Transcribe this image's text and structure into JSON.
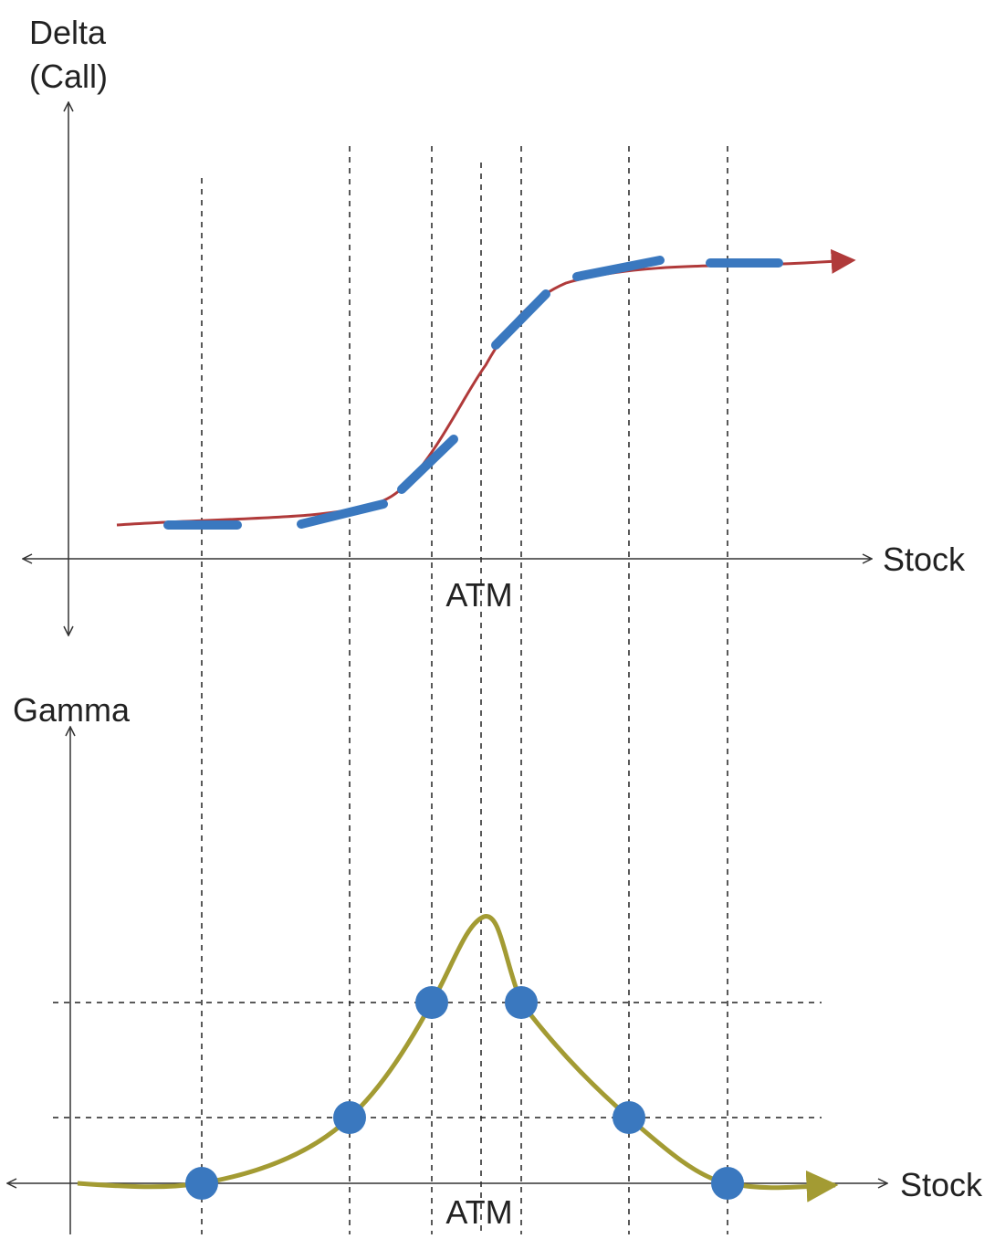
{
  "delta_chart": {
    "y_label_line1": "Delta",
    "y_label_line2": "(Call)",
    "x_label": "Stock",
    "atm_label": "ATM"
  },
  "gamma_chart": {
    "y_label": "Gamma",
    "x_label": "Stock",
    "atm_label": "ATM"
  },
  "colors": {
    "axis": "#333333",
    "delta_curve": "#b03a3a",
    "delta_dashes": "#3a78bf",
    "gamma_curve": "#a39b33",
    "gamma_points": "#3a78bf",
    "guide_lines": "#222222"
  },
  "chart_data": [
    {
      "type": "line",
      "title": "",
      "ylabel": "Delta (Call)",
      "xlabel": "Stock",
      "annotations": [
        "ATM"
      ],
      "x_tick_labels": [
        "ATM"
      ],
      "grid": false,
      "description_series": [
        {
          "name": "delta-curve",
          "shape": "sigmoid",
          "values_relative": [
            0.02,
            0.03,
            0.08,
            0.25,
            0.5,
            0.75,
            0.93,
            0.98,
            0.99
          ]
        },
        {
          "name": "delta-linear-approximation",
          "segments": 6
        }
      ]
    },
    {
      "type": "line",
      "title": "",
      "ylabel": "Gamma",
      "xlabel": "Stock",
      "annotations": [
        "ATM"
      ],
      "x_tick_labels": [
        "ATM"
      ],
      "grid": false,
      "series": [
        {
          "name": "gamma-points",
          "values_relative": [
            0.0,
            0.25,
            0.65,
            0.65,
            0.25,
            0.0
          ]
        }
      ]
    }
  ]
}
